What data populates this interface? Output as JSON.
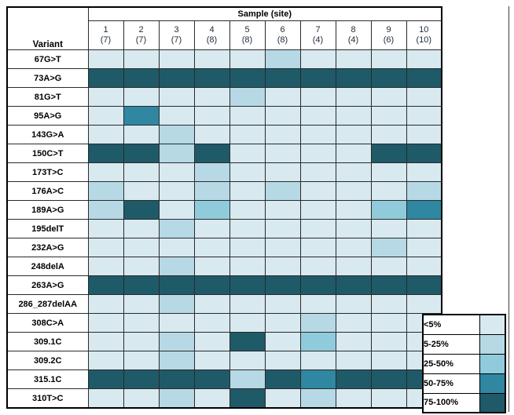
{
  "chart_data": {
    "type": "heatmap",
    "title": "Sample (site)",
    "row_axis_label": "Variant",
    "legend_position": "bottom-right",
    "grid": true,
    "columns": [
      {
        "sample": "1",
        "site": "(7)"
      },
      {
        "sample": "2",
        "site": "(7)"
      },
      {
        "sample": "3",
        "site": "(7)"
      },
      {
        "sample": "4",
        "site": "(8)"
      },
      {
        "sample": "5",
        "site": "(8)"
      },
      {
        "sample": "6",
        "site": "(8)"
      },
      {
        "sample": "7",
        "site": "(4)"
      },
      {
        "sample": "8",
        "site": "(4)"
      },
      {
        "sample": "9",
        "site": "(6)"
      },
      {
        "sample": "10",
        "site": "(10)"
      }
    ],
    "legend": [
      {
        "label": "<5%",
        "color": "#d8e9f0"
      },
      {
        "label": "5-25%",
        "color": "#b6d9e5"
      },
      {
        "label": "25-50%",
        "color": "#90cbdc"
      },
      {
        "label": "50-75%",
        "color": "#2f87a2"
      },
      {
        "label": "75-100%",
        "color": "#1f5a68"
      }
    ],
    "rows": [
      {
        "variant": "67G>T",
        "values": [
          "<5%",
          "<5%",
          "<5%",
          "<5%",
          "<5%",
          "5-25%",
          "<5%",
          "<5%",
          "<5%",
          "<5%"
        ]
      },
      {
        "variant": "73A>G",
        "values": [
          "75-100%",
          "75-100%",
          "75-100%",
          "75-100%",
          "75-100%",
          "75-100%",
          "75-100%",
          "75-100%",
          "75-100%",
          "75-100%"
        ]
      },
      {
        "variant": "81G>T",
        "values": [
          "<5%",
          "<5%",
          "<5%",
          "<5%",
          "5-25%",
          "<5%",
          "<5%",
          "<5%",
          "<5%",
          "<5%"
        ]
      },
      {
        "variant": "95A>G",
        "values": [
          "<5%",
          "50-75%",
          "<5%",
          "<5%",
          "<5%",
          "<5%",
          "<5%",
          "<5%",
          "<5%",
          "<5%"
        ]
      },
      {
        "variant": "143G>A",
        "values": [
          "<5%",
          "<5%",
          "5-25%",
          "<5%",
          "<5%",
          "<5%",
          "<5%",
          "<5%",
          "<5%",
          "<5%"
        ]
      },
      {
        "variant": "150C>T",
        "values": [
          "75-100%",
          "75-100%",
          "5-25%",
          "75-100%",
          "<5%",
          "<5%",
          "<5%",
          "<5%",
          "75-100%",
          "75-100%"
        ]
      },
      {
        "variant": "173T>C",
        "values": [
          "<5%",
          "<5%",
          "<5%",
          "5-25%",
          "<5%",
          "<5%",
          "<5%",
          "<5%",
          "<5%",
          "<5%"
        ]
      },
      {
        "variant": "176A>C",
        "values": [
          "5-25%",
          "<5%",
          "<5%",
          "5-25%",
          "<5%",
          "5-25%",
          "<5%",
          "<5%",
          "<5%",
          "5-25%"
        ]
      },
      {
        "variant": "189A>G",
        "values": [
          "5-25%",
          "75-100%",
          "<5%",
          "25-50%",
          "<5%",
          "<5%",
          "<5%",
          "<5%",
          "25-50%",
          "50-75%"
        ]
      },
      {
        "variant": "195delT",
        "values": [
          "<5%",
          "<5%",
          "5-25%",
          "<5%",
          "<5%",
          "<5%",
          "<5%",
          "<5%",
          "<5%",
          "<5%"
        ]
      },
      {
        "variant": "232A>G",
        "values": [
          "<5%",
          "<5%",
          "<5%",
          "<5%",
          "<5%",
          "<5%",
          "<5%",
          "<5%",
          "5-25%",
          "<5%"
        ]
      },
      {
        "variant": "248delA",
        "values": [
          "<5%",
          "<5%",
          "5-25%",
          "<5%",
          "<5%",
          "<5%",
          "<5%",
          "<5%",
          "<5%",
          "<5%"
        ]
      },
      {
        "variant": "263A>G",
        "values": [
          "75-100%",
          "75-100%",
          "75-100%",
          "75-100%",
          "75-100%",
          "75-100%",
          "75-100%",
          "75-100%",
          "75-100%",
          "75-100%"
        ]
      },
      {
        "variant": "286_287delAA",
        "values": [
          "<5%",
          "<5%",
          "5-25%",
          "<5%",
          "<5%",
          "<5%",
          "<5%",
          "<5%",
          "<5%",
          "<5%"
        ]
      },
      {
        "variant": "308C>A",
        "values": [
          "<5%",
          "<5%",
          "<5%",
          "<5%",
          "<5%",
          "<5%",
          "5-25%",
          "<5%",
          "<5%",
          "<5%"
        ]
      },
      {
        "variant": "309.1C",
        "values": [
          "<5%",
          "<5%",
          "5-25%",
          "<5%",
          "75-100%",
          "<5%",
          "25-50%",
          "<5%",
          "<5%",
          "<5%"
        ]
      },
      {
        "variant": "309.2C",
        "values": [
          "<5%",
          "<5%",
          "5-25%",
          "<5%",
          "<5%",
          "<5%",
          "<5%",
          "<5%",
          "<5%",
          "<5%"
        ]
      },
      {
        "variant": "315.1C",
        "values": [
          "75-100%",
          "75-100%",
          "75-100%",
          "75-100%",
          "5-25%",
          "75-100%",
          "50-75%",
          "75-100%",
          "75-100%",
          "75-100%"
        ]
      },
      {
        "variant": "310T>C",
        "values": [
          "<5%",
          "<5%",
          "5-25%",
          "<5%",
          "75-100%",
          "<5%",
          "5-25%",
          "<5%",
          "<5%",
          "<5%"
        ]
      }
    ]
  }
}
